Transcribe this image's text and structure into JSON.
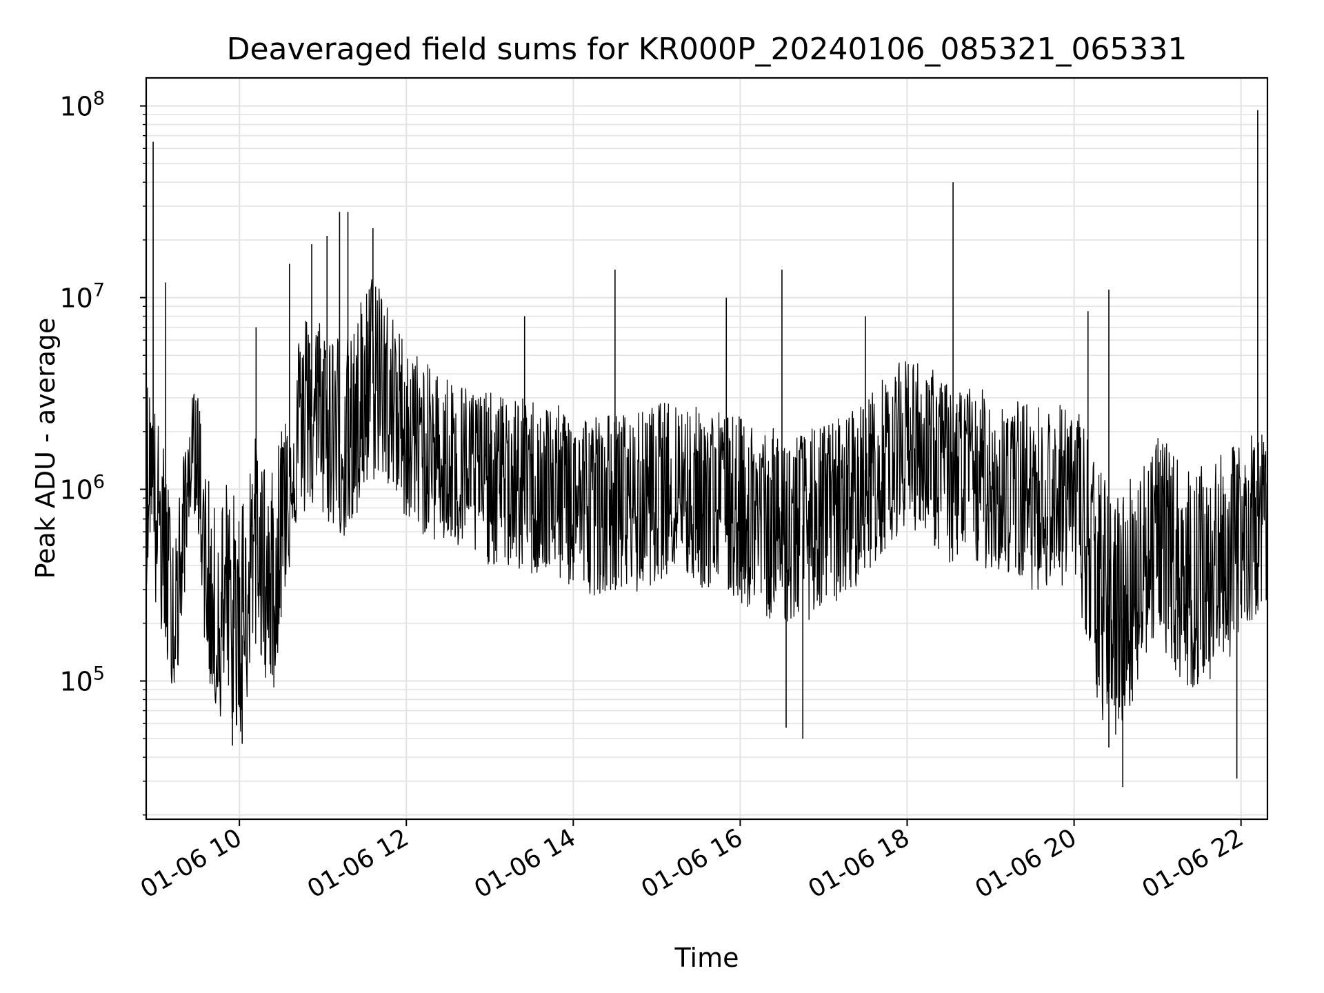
{
  "chart_data": {
    "type": "line",
    "title": "Deaveraged field sums for KR000P_20240106_085321_065331",
    "xlabel": "Time",
    "ylabel": "Peak ADU - average",
    "yscale": "log",
    "ylim": [
      19000,
      140000000
    ],
    "xlim": [
      "2024-01-06 08:53",
      "2024-01-06 22:19"
    ],
    "grid": true,
    "x_ticks": [
      {
        "t": "2024-01-06 10:00",
        "label": "01-06 10"
      },
      {
        "t": "2024-01-06 12:00",
        "label": "01-06 12"
      },
      {
        "t": "2024-01-06 14:00",
        "label": "01-06 14"
      },
      {
        "t": "2024-01-06 16:00",
        "label": "01-06 16"
      },
      {
        "t": "2024-01-06 18:00",
        "label": "01-06 18"
      },
      {
        "t": "2024-01-06 20:00",
        "label": "01-06 20"
      },
      {
        "t": "2024-01-06 22:00",
        "label": "01-06 22"
      }
    ],
    "y_ticks": [
      {
        "value": 100000,
        "base": "10",
        "exp": "5"
      },
      {
        "value": 1000000,
        "base": "10",
        "exp": "6"
      },
      {
        "value": 10000000,
        "base": "10",
        "exp": "7"
      },
      {
        "value": 100000000,
        "base": "10",
        "exp": "8"
      }
    ],
    "series": [
      {
        "color": "#000000",
        "x": [
          "2024-01-06 08:53",
          "2024-01-06 08:57",
          "2024-01-06 09:00",
          "2024-01-06 09:05",
          "2024-01-06 09:10",
          "2024-01-06 09:15",
          "2024-01-06 09:20",
          "2024-01-06 09:25",
          "2024-01-06 09:30",
          "2024-01-06 09:35",
          "2024-01-06 09:40",
          "2024-01-06 09:45",
          "2024-01-06 09:50",
          "2024-01-06 09:55",
          "2024-01-06 10:00",
          "2024-01-06 10:05",
          "2024-01-06 10:10",
          "2024-01-06 10:15",
          "2024-01-06 10:20",
          "2024-01-06 10:25",
          "2024-01-06 10:30",
          "2024-01-06 10:40",
          "2024-01-06 10:50",
          "2024-01-06 11:00",
          "2024-01-06 11:10",
          "2024-01-06 11:20",
          "2024-01-06 11:30",
          "2024-01-06 11:40",
          "2024-01-06 11:50",
          "2024-01-06 12:00",
          "2024-01-06 12:15",
          "2024-01-06 12:30",
          "2024-01-06 12:45",
          "2024-01-06 13:00",
          "2024-01-06 13:15",
          "2024-01-06 13:30",
          "2024-01-06 13:45",
          "2024-01-06 14:00",
          "2024-01-06 14:15",
          "2024-01-06 14:30",
          "2024-01-06 14:45",
          "2024-01-06 15:00",
          "2024-01-06 15:15",
          "2024-01-06 15:30",
          "2024-01-06 15:45",
          "2024-01-06 16:00",
          "2024-01-06 16:15",
          "2024-01-06 16:30",
          "2024-01-06 16:45",
          "2024-01-06 17:00",
          "2024-01-06 17:15",
          "2024-01-06 17:30",
          "2024-01-06 17:45",
          "2024-01-06 18:00",
          "2024-01-06 18:15",
          "2024-01-06 18:30",
          "2024-01-06 18:45",
          "2024-01-06 19:00",
          "2024-01-06 19:15",
          "2024-01-06 19:30",
          "2024-01-06 19:45",
          "2024-01-06 20:00",
          "2024-01-06 20:10",
          "2024-01-06 20:20",
          "2024-01-06 20:30",
          "2024-01-06 20:40",
          "2024-01-06 20:50",
          "2024-01-06 21:00",
          "2024-01-06 21:10",
          "2024-01-06 21:20",
          "2024-01-06 21:30",
          "2024-01-06 21:40",
          "2024-01-06 21:50",
          "2024-01-06 22:00",
          "2024-01-06 22:10",
          "2024-01-06 22:19"
        ],
        "y_median": [
          800000,
          1400000,
          900000,
          500000,
          250000,
          180000,
          600000,
          1400000,
          1500000,
          400000,
          200000,
          150000,
          250000,
          150000,
          120000,
          300000,
          600000,
          400000,
          300000,
          250000,
          600000,
          1800000,
          2500000,
          2000000,
          1800000,
          1500000,
          3000000,
          4000000,
          2500000,
          2000000,
          1500000,
          1400000,
          1300000,
          1200000,
          1100000,
          1000000,
          1000000,
          900000,
          850000,
          900000,
          850000,
          1000000,
          1100000,
          900000,
          900000,
          800000,
          700000,
          600000,
          650000,
          700000,
          800000,
          1000000,
          1400000,
          1800000,
          1600000,
          1200000,
          1200000,
          1100000,
          1000000,
          900000,
          900000,
          1000000,
          500000,
          200000,
          180000,
          250000,
          400000,
          600000,
          400000,
          300000,
          300000,
          350000,
          450000,
          500000,
          700000,
          800000
        ],
        "y_high": [
          4000000,
          3500000,
          2500000,
          1800000,
          900000,
          800000,
          1500000,
          3000000,
          3500000,
          1500000,
          900000,
          700000,
          1200000,
          1000000,
          900000,
          1200000,
          2000000,
          1600000,
          1300000,
          1200000,
          2500000,
          6000000,
          9000000,
          8000000,
          7000000,
          6000000,
          12000000,
          15000000,
          8000000,
          6000000,
          4500000,
          4000000,
          3500000,
          3200000,
          3000000,
          3000000,
          2800000,
          2600000,
          2500000,
          2500000,
          2500000,
          2800000,
          3000000,
          2700000,
          2600000,
          2400000,
          2200000,
          2000000,
          2000000,
          2200000,
          2500000,
          3000000,
          4000000,
          5000000,
          4500000,
          3500000,
          3500000,
          3200000,
          3000000,
          2800000,
          2700000,
          3000000,
          2000000,
          1200000,
          1000000,
          1200000,
          1500000,
          2000000,
          1600000,
          1300000,
          1300000,
          1400000,
          1600000,
          1800000,
          2000000,
          2000000
        ],
        "y_low": [
          300000,
          700000,
          200000,
          150000,
          100000,
          90000,
          250000,
          800000,
          700000,
          150000,
          80000,
          60000,
          80000,
          60000,
          50000,
          70000,
          150000,
          120000,
          100000,
          90000,
          200000,
          600000,
          800000,
          700000,
          600000,
          500000,
          900000,
          1200000,
          900000,
          700000,
          550000,
          500000,
          450000,
          400000,
          380000,
          350000,
          350000,
          300000,
          280000,
          300000,
          280000,
          330000,
          380000,
          300000,
          300000,
          250000,
          220000,
          200000,
          200000,
          230000,
          270000,
          350000,
          500000,
          650000,
          550000,
          400000,
          400000,
          380000,
          350000,
          300000,
          300000,
          330000,
          120000,
          60000,
          50000,
          70000,
          120000,
          180000,
          120000,
          90000,
          90000,
          100000,
          130000,
          150000,
          220000,
          250000
        ],
        "spikes": [
          {
            "t": "2024-01-06 08:58",
            "value": 65000000
          },
          {
            "t": "2024-01-06 09:07",
            "value": 12000000
          },
          {
            "t": "2024-01-06 10:12",
            "value": 7000000
          },
          {
            "t": "2024-01-06 10:36",
            "value": 15000000
          },
          {
            "t": "2024-01-06 10:52",
            "value": 19000000
          },
          {
            "t": "2024-01-06 11:03",
            "value": 21000000
          },
          {
            "t": "2024-01-06 11:12",
            "value": 28000000
          },
          {
            "t": "2024-01-06 11:18",
            "value": 28000000
          },
          {
            "t": "2024-01-06 11:36",
            "value": 23000000
          },
          {
            "t": "2024-01-06 13:25",
            "value": 8000000
          },
          {
            "t": "2024-01-06 14:30",
            "value": 14000000
          },
          {
            "t": "2024-01-06 15:50",
            "value": 10000000
          },
          {
            "t": "2024-01-06 16:30",
            "value": 14000000
          },
          {
            "t": "2024-01-06 17:30",
            "value": 8000000
          },
          {
            "t": "2024-01-06 18:33",
            "value": 40000000
          },
          {
            "t": "2024-01-06 20:25",
            "value": 11000000
          },
          {
            "t": "2024-01-06 20:10",
            "value": 8500000
          },
          {
            "t": "2024-01-06 22:12",
            "value": 95000000
          }
        ],
        "dips": [
          {
            "t": "2024-01-06 09:55",
            "value": 46000
          },
          {
            "t": "2024-01-06 10:02",
            "value": 47000
          },
          {
            "t": "2024-01-06 16:33",
            "value": 57000
          },
          {
            "t": "2024-01-06 16:45",
            "value": 50000
          },
          {
            "t": "2024-01-06 20:25",
            "value": 45000
          },
          {
            "t": "2024-01-06 20:35",
            "value": 28000
          },
          {
            "t": "2024-01-06 21:57",
            "value": 31000
          }
        ]
      }
    ]
  }
}
